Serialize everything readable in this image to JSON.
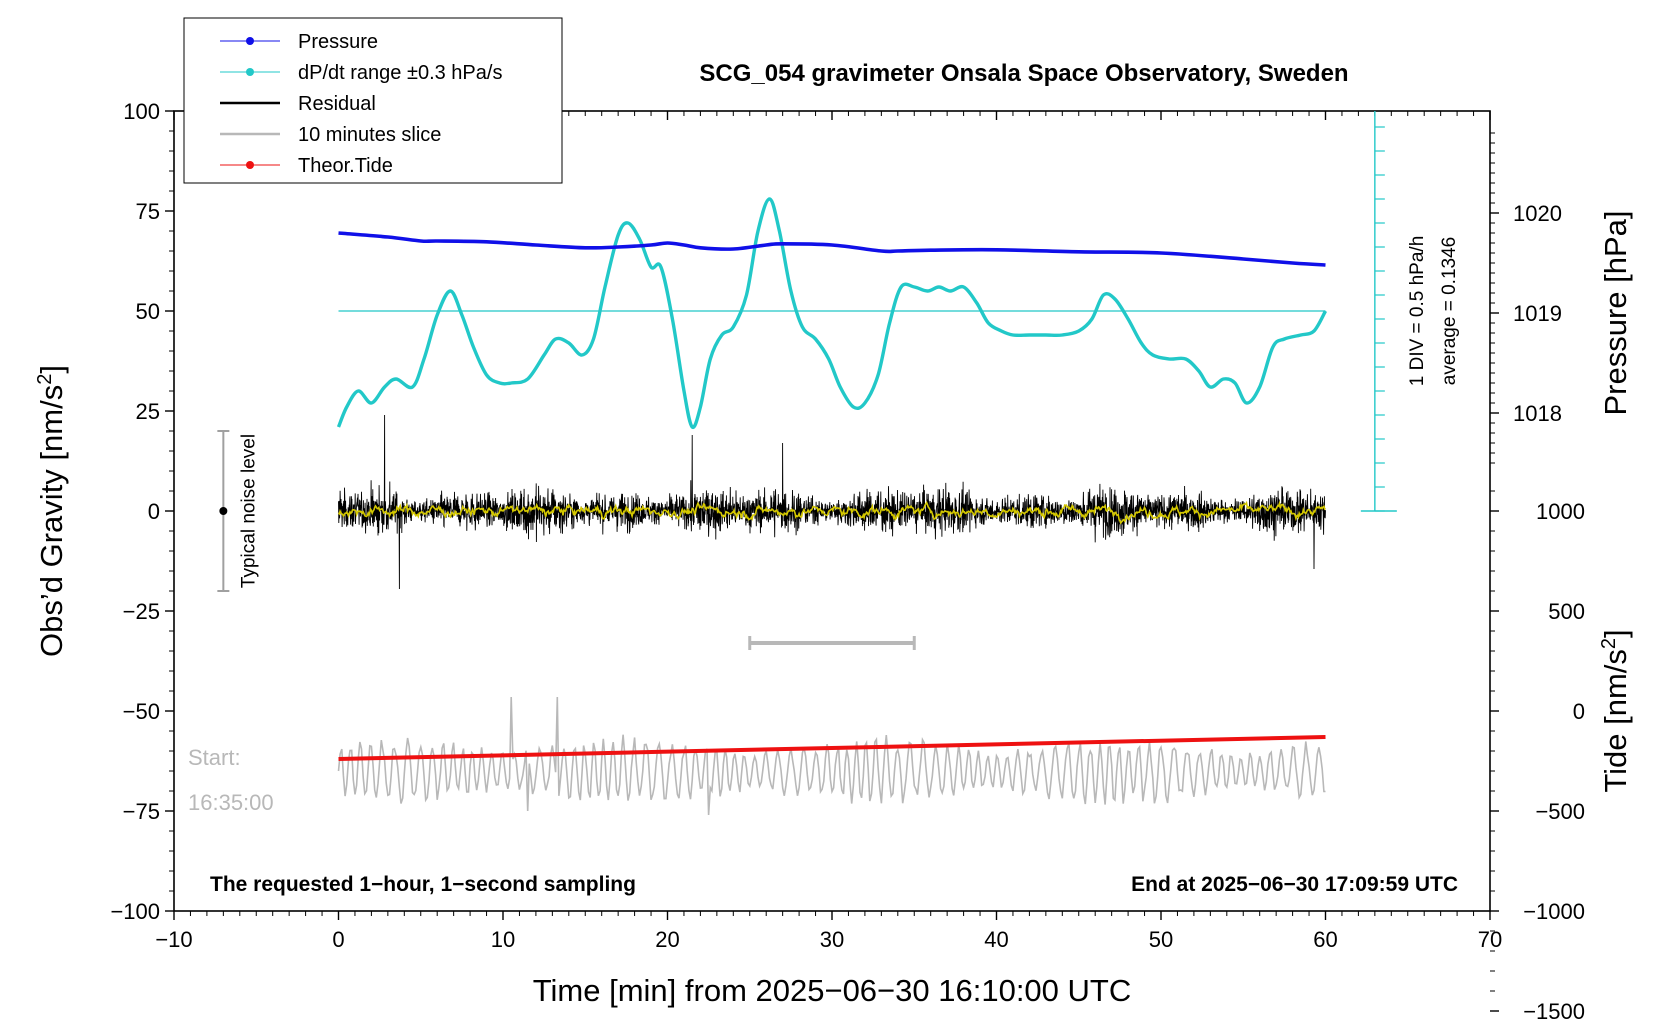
{
  "chart_data": {
    "type": "line",
    "title": "SCG_054 gravimeter Onsala Space Observatory, Sweden",
    "xlabel": "Time [min] from 2025−06−30 16:10:00 UTC",
    "xlim": [
      -10,
      70
    ],
    "x_ticks": [
      "−10",
      "0",
      "10",
      "20",
      "30",
      "40",
      "50",
      "60",
      "70"
    ],
    "ylabel": "Obs’d Gravity [nm/s",
    "ylabel_sup": "2",
    "ylabel_end": "]",
    "ylim": [
      -100,
      100
    ],
    "y_ticks": [
      "−100",
      "−75",
      "−50",
      "−25",
      "0",
      "25",
      "50",
      "75",
      "100"
    ],
    "pressure_axis": {
      "label": "Pressure [hPa]",
      "ticks": [
        "1018",
        "1019",
        "1020"
      ],
      "tick_values": [
        1018,
        1019,
        1020
      ],
      "gravity_equiv_at_1018": 24.5,
      "gravity_per_hpa": 25
    },
    "tide_axis": {
      "label": "Tide [nm/s",
      "label_sup": "2",
      "label_end": "]",
      "ticks": [
        "1000",
        "500",
        "0",
        "−500",
        "−1000",
        "−1500"
      ],
      "tick_values": [
        1000,
        500,
        0,
        -500,
        -1000,
        -1500
      ],
      "gravity_equiv_at_0": -50,
      "gravity_per_unit": 0.05
    },
    "legend": {
      "position": "top-left",
      "entries": [
        {
          "label": "Pressure",
          "color": "#1010e8",
          "marker": true
        },
        {
          "label": "dP/dt range ±0.3 hPa/s",
          "color": "#22c8c8",
          "marker": true
        },
        {
          "label": "Residual",
          "color": "#000000",
          "marker": false
        },
        {
          "label": "10 minutes slice",
          "color": "#b8b8b8",
          "marker": false
        },
        {
          "label": "Theor.Tide",
          "color": "#ee1111",
          "marker": true
        }
      ]
    },
    "series": [
      {
        "name": "Pressure",
        "color": "#1010e8",
        "x": [
          0,
          3,
          5,
          6,
          9,
          12,
          15,
          17,
          19,
          20,
          21,
          22,
          24,
          26,
          27,
          30,
          33,
          34,
          36,
          40,
          45,
          50,
          55,
          58,
          60
        ],
        "y": [
          69.5,
          68.5,
          67.5,
          67.5,
          67.3,
          66.5,
          65.8,
          66.0,
          66.5,
          67.0,
          66.5,
          65.8,
          65.5,
          66.5,
          66.8,
          66.5,
          65.0,
          65.0,
          65.2,
          65.3,
          64.8,
          64.5,
          63.0,
          62.0,
          61.5
        ]
      },
      {
        "name": "dP/dt range ±0.3 hPa/s",
        "color": "#22c8c8",
        "x": [
          0,
          0.5,
          1.2,
          2.0,
          2.8,
          3.5,
          4.5,
          5.2,
          6.0,
          6.8,
          7.5,
          8.2,
          9.0,
          9.8,
          10.5,
          11.5,
          12.5,
          13.2,
          14.0,
          14.8,
          15.5,
          16.2,
          17.0,
          17.6,
          18.3,
          19.0,
          19.6,
          20.3,
          21.0,
          21.5,
          22.0,
          22.6,
          23.3,
          24.0,
          24.8,
          25.5,
          26.2,
          26.8,
          27.5,
          28.2,
          29.0,
          29.8,
          30.5,
          31.3,
          32.0,
          32.8,
          33.5,
          34.2,
          35.0,
          35.8,
          36.5,
          37.2,
          38.0,
          38.8,
          39.5,
          40.3,
          41.0,
          42.0,
          43.0,
          44.0,
          45.0,
          45.8,
          46.5,
          47.2,
          48.0,
          48.8,
          49.5,
          50.5,
          51.5,
          52.3,
          53.0,
          53.8,
          54.5,
          55.2,
          56.0,
          56.8,
          57.5,
          58.5,
          59.3,
          60.0
        ],
        "y": [
          21,
          26,
          30,
          27,
          31,
          33,
          31,
          38,
          49,
          55,
          49,
          41,
          34,
          32,
          32,
          33,
          39,
          43,
          42,
          39,
          43,
          56,
          69,
          72,
          68,
          61,
          61,
          48,
          30,
          21,
          26,
          38,
          44,
          46,
          54,
          70,
          78,
          70,
          55,
          46,
          43,
          38,
          31,
          26,
          27,
          34,
          47,
          56,
          56,
          55,
          56,
          55,
          56,
          52,
          47,
          45,
          44,
          44,
          44,
          44,
          45,
          48,
          54,
          53,
          48,
          42,
          39,
          38,
          38,
          35,
          31,
          33,
          32,
          27,
          31,
          41,
          43,
          44,
          45,
          50
        ]
      },
      {
        "name": "Residual",
        "color": "#000000",
        "generated": "noise",
        "x_range": [
          0,
          60
        ],
        "center": 0,
        "typical_amplitude": 8,
        "extremes": [
          [
            2.8,
            24
          ],
          [
            3.7,
            -19.5
          ],
          [
            21.5,
            19
          ],
          [
            27,
            17
          ],
          [
            59.3,
            -14.5
          ]
        ]
      },
      {
        "name": "smoothed residual",
        "color": "#d4c800",
        "generated": "noise",
        "x_range": [
          0,
          60
        ],
        "center": 0,
        "typical_amplitude": 1.5
      },
      {
        "name": "10 minutes slice",
        "color": "#b8b8b8",
        "generated": "noise",
        "x_range": [
          0,
          60
        ],
        "center": -65,
        "typical_amplitude": 7,
        "extremes": [
          [
            10.5,
            -46.5
          ],
          [
            13.3,
            -46.5
          ],
          [
            11.5,
            -75
          ],
          [
            22.5,
            -76
          ]
        ]
      },
      {
        "name": "Theor.Tide",
        "color": "#ee1111",
        "x": [
          0,
          60
        ],
        "y": [
          -62,
          -56.5
        ]
      }
    ],
    "reference_line": {
      "y": 50,
      "x_range": [
        0,
        60
      ],
      "color": "#22c8c8"
    },
    "pressure_rate_scale": {
      "x": 63,
      "y_range": [
        0,
        100
      ],
      "div_step": 6,
      "label": "1 DIV = 0.5 hPa/h",
      "average_label": "average = 0.1346",
      "color": "#22c8c8"
    },
    "noise_level_bar": {
      "x": -7,
      "y_range": [
        -20,
        20
      ],
      "label": "Typical noise level",
      "color": "#a0a0a0"
    },
    "slice_bar": {
      "x_range": [
        25,
        35
      ],
      "y": -33,
      "color": "#b8b8b8"
    },
    "start_label": {
      "line1": "Start:",
      "line2": "16:35:00"
    },
    "footer_left": "The requested 1−hour, 1−second sampling",
    "footer_right": "End at 2025−06−30 17:09:59 UTC",
    "grid": false
  }
}
